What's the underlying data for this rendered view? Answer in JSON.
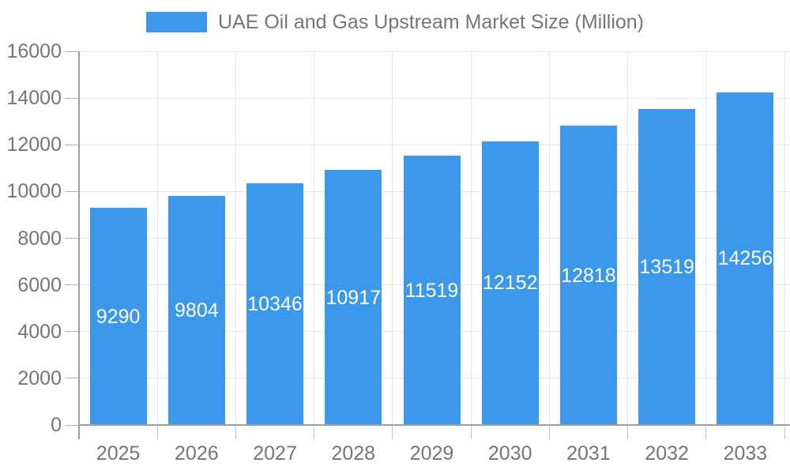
{
  "chart_data": {
    "type": "bar",
    "title": "UAE Oil and Gas Upstream Market Size (Million)",
    "categories": [
      "2025",
      "2026",
      "2027",
      "2028",
      "2029",
      "2030",
      "2031",
      "2032",
      "2033"
    ],
    "values": [
      9290,
      9804,
      10346,
      10917,
      11519,
      12152,
      12818,
      13519,
      14256
    ],
    "xlabel": "",
    "ylabel": "",
    "ylim": [
      0,
      16000
    ],
    "yticks": [
      0,
      2000,
      4000,
      6000,
      8000,
      10000,
      12000,
      14000,
      16000
    ],
    "grid": true,
    "legend_position": "top",
    "bar_color": "#3b98eb",
    "bar_label_color": "#ffffff",
    "axis_text_color": "#757575",
    "axis_line_color": "#9e9e9e",
    "grid_color": "#e6e6e6"
  }
}
